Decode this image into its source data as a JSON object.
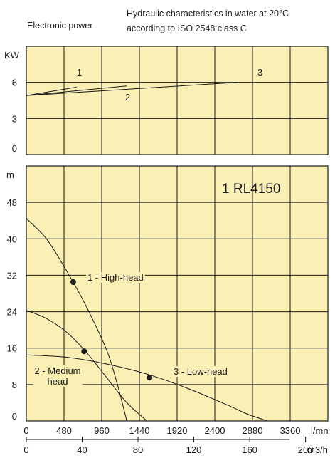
{
  "header": {
    "left": "Electronic power",
    "right_line1": "Hydraulic characteristics in water at 20°C",
    "right_line2": "according to ISO 2548 class C"
  },
  "model_label": "1 RL4150",
  "colors": {
    "panel_fill": "#faefb4",
    "grid": "#1a1a1a",
    "curve": "#1a1a1a"
  },
  "chart_data": [
    {
      "type": "line",
      "title": "",
      "ylabel": "KW",
      "xlabel": "",
      "xlim": [
        0,
        3600
      ],
      "ylim": [
        0,
        9
      ],
      "yticks": [
        "0",
        "3",
        "6"
      ],
      "grid": true,
      "series": [
        {
          "name": "1",
          "x": [
            0,
            600
          ],
          "y": [
            4.9,
            5.6
          ]
        },
        {
          "name": "2",
          "x": [
            0,
            1200
          ],
          "y": [
            4.9,
            5.7
          ]
        },
        {
          "name": "3",
          "x": [
            0,
            2520
          ],
          "y": [
            4.9,
            6.0
          ]
        }
      ]
    },
    {
      "type": "line",
      "title": "",
      "ylabel": "m",
      "xlabel": "l/mn",
      "xlabel2": "m3/h",
      "xlim": [
        0,
        3600
      ],
      "ylim": [
        0,
        56
      ],
      "xticks": [
        "0",
        "480",
        "960",
        "1440",
        "1920",
        "2400",
        "2880",
        "3360"
      ],
      "xticks2": [
        "0",
        "40",
        "80",
        "120",
        "160",
        "200"
      ],
      "yticks": [
        "0",
        "8",
        "16",
        "24",
        "32",
        "40",
        "48"
      ],
      "grid": true,
      "series": [
        {
          "name": "1 - High-head",
          "x": [
            0,
            240,
            480,
            720,
            960,
            1080,
            1200
          ],
          "y": [
            44.5,
            40,
            33,
            25,
            15.5,
            8.5,
            0
          ]
        },
        {
          "name": "2 - Medium head",
          "x": [
            0,
            240,
            480,
            720,
            960,
            1200,
            1440
          ],
          "y": [
            24.3,
            22.5,
            19.5,
            15,
            9.5,
            4,
            0
          ]
        },
        {
          "name": "3 - Low-head",
          "x": [
            0,
            480,
            960,
            1440,
            1920,
            2400,
            2640,
            2880
          ],
          "y": [
            14.5,
            14,
            12.5,
            10.3,
            7.2,
            3.5,
            1.5,
            0
          ]
        }
      ],
      "points": [
        {
          "series": "1 - High-head",
          "x": 560,
          "y": 30.5
        },
        {
          "series": "2 - Medium head",
          "x": 690,
          "y": 15.3
        },
        {
          "series": "3 - Low-head",
          "x": 1470,
          "y": 9.5
        }
      ]
    }
  ]
}
